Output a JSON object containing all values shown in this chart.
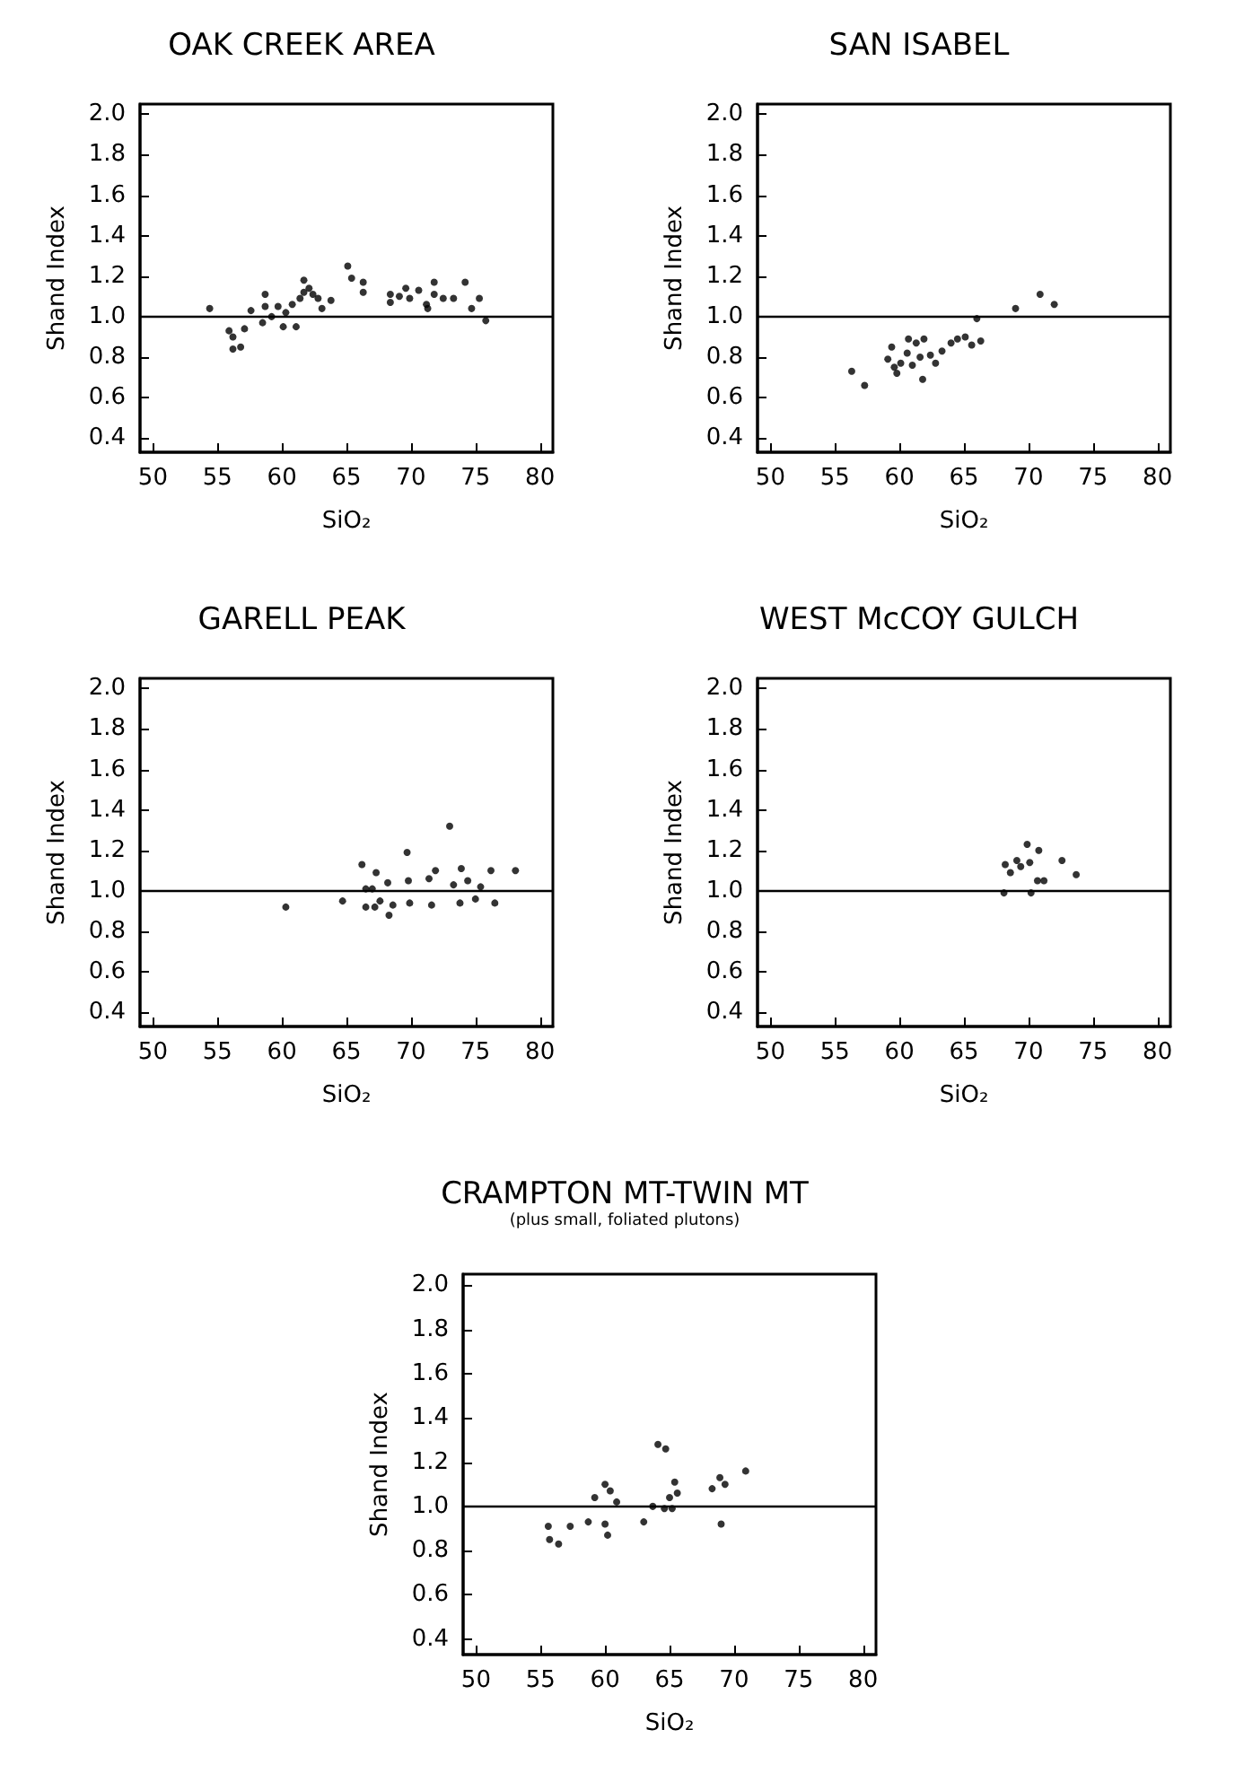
{
  "chart_data": [
    {
      "type": "scatter",
      "title": "OAK CREEK AREA",
      "xlabel": "SiO₂",
      "ylabel": "Shand Index",
      "xlim": [
        49,
        81
      ],
      "ylim": [
        0.33,
        2.05
      ],
      "xticks": [
        50,
        55,
        60,
        65,
        70,
        75,
        80
      ],
      "yticks": [
        {
          "value": 0.4,
          "label": "0.4"
        },
        {
          "value": 0.6,
          "label": "0.6"
        },
        {
          "value": 0.8,
          "label": "0.8"
        },
        {
          "value": 1.0,
          "label": "1.0"
        },
        {
          "value": 1.2,
          "label": "1.2"
        },
        {
          "value": 1.4,
          "label": "1.4"
        },
        {
          "value": 1.6,
          "label": "1.6"
        },
        {
          "value": 1.8,
          "label": "1.8"
        },
        {
          "value": 2.0,
          "label": "2.0"
        }
      ],
      "grid": false,
      "marker": "circle",
      "ref_lines": [
        {
          "axis": "y",
          "value": 1.0,
          "color": "#000000"
        }
      ],
      "series": [
        {
          "color": "#000000",
          "x": [
            54.4,
            55.9,
            56.2,
            56.2,
            56.8,
            57.1,
            57.6,
            58.7,
            58.7,
            58.5,
            59.2,
            59.7,
            60.1,
            60.3,
            60.8,
            61.1,
            61.4,
            61.7,
            61.7,
            62.1,
            62.4,
            62.8,
            63.1,
            63.8,
            65.1,
            65.4,
            66.3,
            66.3,
            68.4,
            68.4,
            69.1,
            69.9,
            69.6,
            70.6,
            71.2,
            71.3,
            71.8,
            71.8,
            72.5,
            73.3,
            74.2,
            74.7,
            75.3,
            75.8
          ],
          "values": [
            1.04,
            0.93,
            0.9,
            0.84,
            0.85,
            0.94,
            1.03,
            1.11,
            1.05,
            0.97,
            1.0,
            1.05,
            0.95,
            1.02,
            1.06,
            0.95,
            1.09,
            1.18,
            1.12,
            1.14,
            1.11,
            1.09,
            1.04,
            1.08,
            1.25,
            1.19,
            1.17,
            1.12,
            1.11,
            1.07,
            1.1,
            1.09,
            1.14,
            1.13,
            1.06,
            1.04,
            1.11,
            1.17,
            1.09,
            1.09,
            1.17,
            1.04,
            1.09,
            0.98
          ]
        }
      ]
    },
    {
      "type": "scatter",
      "title": "SAN ISABEL",
      "xlabel": "SiO₂",
      "ylabel": "Shand Index",
      "xlim": [
        49,
        81
      ],
      "ylim": [
        0.33,
        2.05
      ],
      "xticks": [
        50,
        55,
        60,
        65,
        70,
        75,
        80
      ],
      "yticks": [
        {
          "value": 0.4,
          "label": "0.4"
        },
        {
          "value": 0.6,
          "label": "0.6"
        },
        {
          "value": 0.8,
          "label": "0.8"
        },
        {
          "value": 1.0,
          "label": "1.0"
        },
        {
          "value": 1.2,
          "label": "1.2"
        },
        {
          "value": 1.4,
          "label": "1.4"
        },
        {
          "value": 1.6,
          "label": "1.6"
        },
        {
          "value": 1.8,
          "label": "1.8"
        },
        {
          "value": 2.0,
          "label": "2.0"
        }
      ],
      "grid": false,
      "marker": "circle",
      "ref_lines": [
        {
          "axis": "y",
          "value": 1.0,
          "color": "#000000"
        }
      ],
      "series": [
        {
          "color": "#000000",
          "x": [
            56.3,
            57.3,
            59.4,
            59.1,
            59.6,
            59.8,
            60.1,
            60.6,
            60.7,
            61.0,
            61.3,
            61.6,
            61.8,
            61.9,
            62.4,
            62.8,
            63.3,
            64.0,
            64.5,
            65.1,
            65.6,
            66.3,
            66.0,
            69.0,
            70.9,
            72.0
          ],
          "values": [
            0.73,
            0.66,
            0.85,
            0.79,
            0.75,
            0.72,
            0.77,
            0.82,
            0.89,
            0.76,
            0.87,
            0.8,
            0.69,
            0.89,
            0.81,
            0.77,
            0.83,
            0.87,
            0.89,
            0.9,
            0.86,
            0.88,
            0.99,
            1.04,
            1.11,
            1.06
          ]
        }
      ]
    },
    {
      "type": "scatter",
      "title": "GARELL PEAK",
      "xlabel": "SiO₂",
      "ylabel": "Shand Index",
      "xlim": [
        49,
        81
      ],
      "ylim": [
        0.33,
        2.05
      ],
      "xticks": [
        50,
        55,
        60,
        65,
        70,
        75,
        80
      ],
      "yticks": [
        {
          "value": 0.4,
          "label": "0.4"
        },
        {
          "value": 0.6,
          "label": "0.6"
        },
        {
          "value": 0.8,
          "label": "0.8"
        },
        {
          "value": 1.0,
          "label": "1.0"
        },
        {
          "value": 1.2,
          "label": "1.2"
        },
        {
          "value": 1.4,
          "label": "1.4"
        },
        {
          "value": 1.6,
          "label": "1.6"
        },
        {
          "value": 1.8,
          "label": "1.8"
        },
        {
          "value": 2.0,
          "label": "2.0"
        }
      ],
      "grid": false,
      "marker": "circle",
      "ref_lines": [
        {
          "axis": "y",
          "value": 1.0,
          "color": "#000000"
        }
      ],
      "series": [
        {
          "color": "#000000",
          "x": [
            60.3,
            64.7,
            66.2,
            66.5,
            66.5,
            67.0,
            67.3,
            67.2,
            67.6,
            68.2,
            68.3,
            68.6,
            69.7,
            69.8,
            69.9,
            71.4,
            71.6,
            71.9,
            73.0,
            73.3,
            73.9,
            73.8,
            74.4,
            75.0,
            75.4,
            76.2,
            76.5,
            78.1
          ],
          "values": [
            0.92,
            0.95,
            1.13,
            1.01,
            0.92,
            1.01,
            1.09,
            0.92,
            0.95,
            1.04,
            0.88,
            0.93,
            1.19,
            1.05,
            0.94,
            1.06,
            0.93,
            1.1,
            1.32,
            1.03,
            1.11,
            0.94,
            1.05,
            0.96,
            1.02,
            1.1,
            0.94,
            1.1
          ]
        }
      ]
    },
    {
      "type": "scatter",
      "title": "WEST McCOY GULCH",
      "xlabel": "SiO₂",
      "ylabel": "Shand Index",
      "xlim": [
        49,
        81
      ],
      "ylim": [
        0.33,
        2.05
      ],
      "xticks": [
        50,
        55,
        60,
        65,
        70,
        75,
        80
      ],
      "yticks": [
        {
          "value": 0.4,
          "label": "0.4"
        },
        {
          "value": 0.6,
          "label": "0.6"
        },
        {
          "value": 0.8,
          "label": "0.8"
        },
        {
          "value": 1.0,
          "label": "1.0"
        },
        {
          "value": 1.2,
          "label": "1.2"
        },
        {
          "value": 1.4,
          "label": "1.4"
        },
        {
          "value": 1.6,
          "label": "1.6"
        },
        {
          "value": 1.8,
          "label": "1.8"
        },
        {
          "value": 2.0,
          "label": "2.0"
        }
      ],
      "grid": false,
      "marker": "circle",
      "ref_lines": [
        {
          "axis": "y",
          "value": 1.0,
          "color": "#000000"
        }
      ],
      "series": [
        {
          "color": "#000000",
          "x": [
            68.1,
            68.2,
            68.6,
            69.1,
            69.4,
            69.9,
            70.1,
            70.2,
            70.8,
            70.7,
            71.2,
            72.6,
            73.7
          ],
          "values": [
            0.99,
            1.13,
            1.09,
            1.15,
            1.12,
            1.23,
            1.14,
            0.99,
            1.2,
            1.05,
            1.05,
            1.15,
            1.08
          ]
        }
      ]
    },
    {
      "type": "scatter",
      "title": "CRAMPTON MT-TWIN MT",
      "subtitle": "(plus small, foliated plutons)",
      "xlabel": "SiO₂",
      "ylabel": "Shand Index",
      "xlim": [
        49,
        81
      ],
      "ylim": [
        0.33,
        2.05
      ],
      "xticks": [
        50,
        55,
        60,
        65,
        70,
        75,
        80
      ],
      "yticks": [
        {
          "value": 0.4,
          "label": "0.4"
        },
        {
          "value": 0.6,
          "label": "0.6"
        },
        {
          "value": 0.8,
          "label": "0.8"
        },
        {
          "value": 1.0,
          "label": "1.0"
        },
        {
          "value": 1.2,
          "label": "1.2"
        },
        {
          "value": 1.4,
          "label": "1.4"
        },
        {
          "value": 1.6,
          "label": "1.6"
        },
        {
          "value": 1.8,
          "label": "1.8"
        },
        {
          "value": 2.0,
          "label": "2.0"
        }
      ],
      "grid": false,
      "marker": "circle",
      "ref_lines": [
        {
          "axis": "y",
          "value": 1.0,
          "color": "#000000"
        }
      ],
      "series": [
        {
          "color": "#000000",
          "x": [
            55.6,
            55.7,
            56.4,
            57.3,
            58.7,
            59.2,
            60.0,
            60.0,
            60.2,
            60.4,
            60.9,
            63.0,
            63.7,
            64.1,
            64.7,
            64.6,
            65.0,
            65.2,
            65.4,
            65.6,
            68.3,
            68.9,
            69.0,
            69.3,
            70.9
          ],
          "values": [
            0.91,
            0.85,
            0.83,
            0.91,
            0.93,
            1.04,
            1.1,
            0.92,
            0.87,
            1.07,
            1.02,
            0.93,
            1.0,
            1.28,
            1.26,
            0.99,
            1.04,
            0.99,
            1.11,
            1.06,
            1.08,
            1.13,
            0.92,
            1.1,
            1.16
          ]
        }
      ]
    }
  ]
}
